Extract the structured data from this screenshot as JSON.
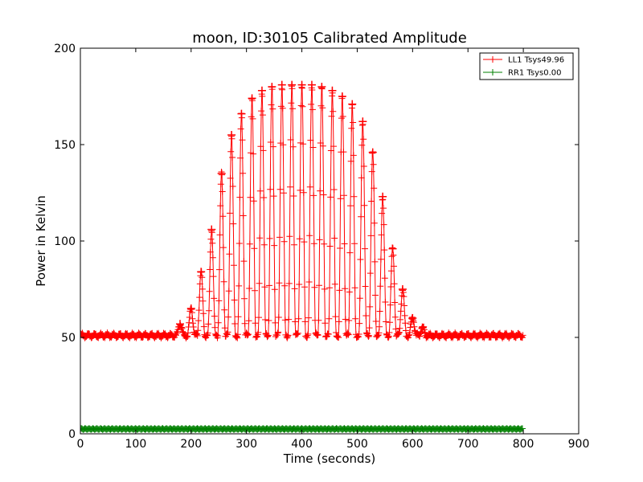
{
  "chart_data": {
    "type": "line",
    "title": "moon, ID:30105 Calibrated Amplitude",
    "xlabel": "Time (seconds)",
    "ylabel": "Power in Kelvin",
    "xlim": [
      0,
      900
    ],
    "ylim": [
      0,
      200
    ],
    "xticks": [
      "0",
      "100",
      "200",
      "300",
      "400",
      "500",
      "600",
      "700",
      "800",
      "900"
    ],
    "yticks": [
      "0",
      "50",
      "100",
      "150",
      "200"
    ],
    "grid": false,
    "legend_position": "top-right",
    "series": [
      {
        "name": "LL1 Tsys49.96",
        "color": "#ff0000",
        "marker": "plus",
        "baseline": 51,
        "x_start": 0,
        "x_end": 800,
        "peaks": [
          {
            "x": 180,
            "y": 57
          },
          {
            "x": 200,
            "y": 65
          },
          {
            "x": 218,
            "y": 84
          },
          {
            "x": 237,
            "y": 106
          },
          {
            "x": 255,
            "y": 135
          },
          {
            "x": 273,
            "y": 155
          },
          {
            "x": 291,
            "y": 166
          },
          {
            "x": 310,
            "y": 174
          },
          {
            "x": 328,
            "y": 178
          },
          {
            "x": 346,
            "y": 180
          },
          {
            "x": 364,
            "y": 181
          },
          {
            "x": 382,
            "y": 181
          },
          {
            "x": 400,
            "y": 181
          },
          {
            "x": 418,
            "y": 181
          },
          {
            "x": 436,
            "y": 180
          },
          {
            "x": 455,
            "y": 178
          },
          {
            "x": 473,
            "y": 175
          },
          {
            "x": 491,
            "y": 171
          },
          {
            "x": 510,
            "y": 162
          },
          {
            "x": 528,
            "y": 146
          },
          {
            "x": 546,
            "y": 123
          },
          {
            "x": 564,
            "y": 96
          },
          {
            "x": 582,
            "y": 75
          },
          {
            "x": 600,
            "y": 60
          },
          {
            "x": 618,
            "y": 55
          }
        ]
      },
      {
        "name": "RR1 Tsys0.00",
        "color": "#008000",
        "marker": "plus",
        "y": 2.5,
        "x_start": 0,
        "x_end": 800
      }
    ]
  }
}
